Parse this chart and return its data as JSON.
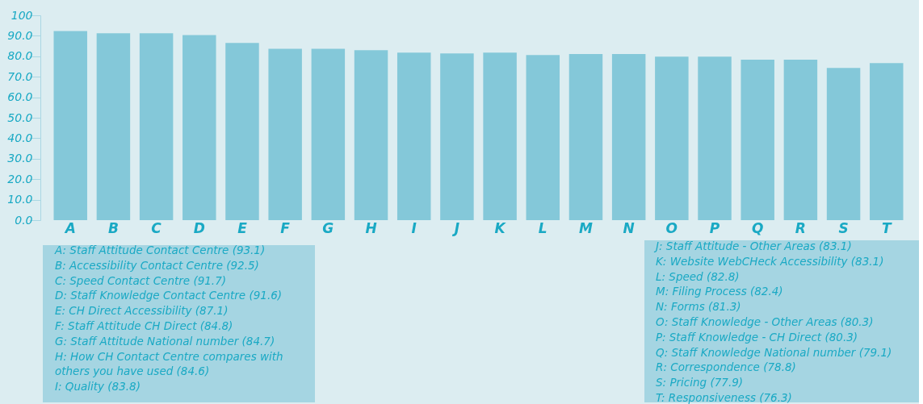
{
  "chart_data": {
    "type": "bar",
    "categories": [
      "A",
      "B",
      "C",
      "D",
      "E",
      "F",
      "G",
      "H",
      "I",
      "J",
      "K",
      "L",
      "M",
      "N",
      "O",
      "P",
      "Q",
      "R",
      "S",
      "T"
    ],
    "values": [
      92.3,
      91.2,
      91.2,
      90.4,
      86.5,
      83.7,
      83.7,
      83.0,
      81.8,
      81.4,
      81.8,
      80.6,
      81.1,
      81.1,
      79.8,
      79.8,
      78.3,
      78.3,
      74.3,
      76.7
    ],
    "color": "#84c8d9",
    "ylim": [
      0,
      100
    ],
    "yticks": [
      {
        "value": 0,
        "label": "0.0"
      },
      {
        "value": 10,
        "label": "10.0"
      },
      {
        "value": 20,
        "label": "20.0"
      },
      {
        "value": 30,
        "label": "30.0"
      },
      {
        "value": 40,
        "label": "40.0"
      },
      {
        "value": 50,
        "label": "50.0"
      },
      {
        "value": 60,
        "label": "60.0"
      },
      {
        "value": 70,
        "label": "70.0"
      },
      {
        "value": 80,
        "label": "80.0"
      },
      {
        "value": 90,
        "label": "90.0"
      },
      100
    ],
    "grid": false,
    "annotations": [
      "A: Staff Attitude Contact Centre (93.1)",
      "B: Accessibility Contact Centre (92.5)",
      "C: Speed Contact Centre (91.7)",
      "D: Staff Knowledge Contact Centre (91.6)",
      "E: CH Direct Accessibility (87.1)",
      "F: Staff Attitude CH Direct (84.8)",
      "G: Staff Attitude National number (84.7)",
      "H: How CH Contact Centre compares with\n    others you have used (84.6)",
      "I: Quality (83.8)",
      "J: Staff Attitude - Other Areas (83.1)",
      "K: Website WebCHeck Accessibility (83.1)",
      "L: Speed (82.8)",
      "M: Filing Process (82.4)",
      "N: Forms (81.3)",
      "O: Staff Knowledge - Other Areas (80.3)",
      "P: Staff Knowledge - CH Direct (80.3)",
      "Q: Staff Knowledge National number (79.1)",
      "R: Correspondence (78.8)",
      "S: Pricing (77.9)",
      "T: Responsiveness (76.3)"
    ]
  }
}
